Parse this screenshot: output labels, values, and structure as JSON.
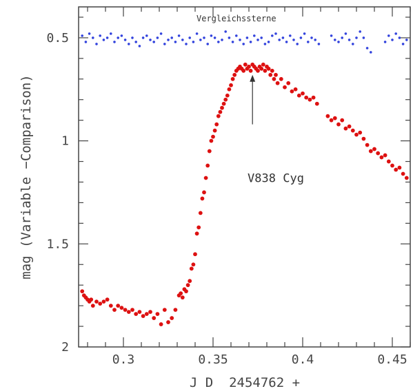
{
  "chart_data": {
    "type": "scatter",
    "title": "",
    "xlabel": "J D  2454762 +",
    "ylabel": "mag (Variable −Comparison)",
    "xlim": [
      0.275,
      0.46
    ],
    "ylim": [
      2.0,
      0.35
    ],
    "y_inverted": true,
    "grid": false,
    "x_ticks": [
      {
        "value": 0.3,
        "label": "0.3"
      },
      {
        "value": 0.35,
        "label": "0.35"
      },
      {
        "value": 0.4,
        "label": "0.4"
      },
      {
        "value": 0.45,
        "label": "0.45"
      }
    ],
    "y_ticks": [
      {
        "value": 0.5,
        "label": "0.5"
      },
      {
        "value": 1.0,
        "label": "1"
      },
      {
        "value": 1.5,
        "label": "1.5"
      },
      {
        "value": 2.0,
        "label": "2"
      }
    ],
    "annotations": [
      {
        "text": "Vergleichssterne",
        "x": 0.363,
        "y": 0.42
      },
      {
        "text": "V838 Cyg",
        "x": 0.385,
        "y": 1.2
      }
    ],
    "arrow": {
      "x": 0.372,
      "y_from": 0.92,
      "y_to": 0.68
    },
    "series": [
      {
        "color": "#3344dd",
        "x": [
          0.277,
          0.279,
          0.281,
          0.283,
          0.285,
          0.287,
          0.289,
          0.291,
          0.293,
          0.295,
          0.297,
          0.299,
          0.301,
          0.303,
          0.305,
          0.307,
          0.309,
          0.311,
          0.313,
          0.315,
          0.317,
          0.319,
          0.321,
          0.323,
          0.325,
          0.327,
          0.329,
          0.331,
          0.333,
          0.335,
          0.337,
          0.339,
          0.341,
          0.343,
          0.345,
          0.347,
          0.349,
          0.351,
          0.353,
          0.355,
          0.357,
          0.359,
          0.361,
          0.363,
          0.365,
          0.367,
          0.369,
          0.371,
          0.373,
          0.375,
          0.377,
          0.379,
          0.381,
          0.383,
          0.385,
          0.387,
          0.389,
          0.391,
          0.393,
          0.395,
          0.397,
          0.399,
          0.401,
          0.403,
          0.405,
          0.407,
          0.409,
          0.416,
          0.418,
          0.42,
          0.422,
          0.424,
          0.426,
          0.428,
          0.43,
          0.432,
          0.434,
          0.436,
          0.438,
          0.446,
          0.448,
          0.45,
          0.452,
          0.454,
          0.456,
          0.458
        ],
        "y": [
          0.49,
          0.52,
          0.48,
          0.5,
          0.53,
          0.49,
          0.51,
          0.5,
          0.48,
          0.52,
          0.5,
          0.49,
          0.51,
          0.53,
          0.5,
          0.52,
          0.54,
          0.5,
          0.49,
          0.51,
          0.52,
          0.5,
          0.48,
          0.53,
          0.51,
          0.5,
          0.52,
          0.49,
          0.51,
          0.53,
          0.5,
          0.52,
          0.48,
          0.51,
          0.5,
          0.53,
          0.49,
          0.5,
          0.52,
          0.51,
          0.47,
          0.5,
          0.52,
          0.49,
          0.51,
          0.53,
          0.5,
          0.52,
          0.49,
          0.51,
          0.5,
          0.53,
          0.52,
          0.49,
          0.48,
          0.51,
          0.5,
          0.52,
          0.49,
          0.51,
          0.53,
          0.5,
          0.48,
          0.52,
          0.5,
          0.51,
          0.53,
          0.49,
          0.51,
          0.52,
          0.5,
          0.48,
          0.51,
          0.53,
          0.5,
          0.47,
          0.5,
          0.55,
          0.57,
          0.52,
          0.49,
          0.51,
          0.48,
          0.5,
          0.53,
          0.51
        ]
      },
      {
        "color": "#dd1111",
        "x": [
          0.277,
          0.278,
          0.279,
          0.28,
          0.281,
          0.282,
          0.283,
          0.285,
          0.287,
          0.289,
          0.291,
          0.293,
          0.295,
          0.297,
          0.299,
          0.301,
          0.303,
          0.305,
          0.307,
          0.309,
          0.311,
          0.313,
          0.315,
          0.317,
          0.319,
          0.321,
          0.323,
          0.325,
          0.327,
          0.329,
          0.331,
          0.332,
          0.333,
          0.334,
          0.335,
          0.336,
          0.337,
          0.338,
          0.339,
          0.34,
          0.341,
          0.342,
          0.343,
          0.344,
          0.345,
          0.346,
          0.347,
          0.348,
          0.349,
          0.35,
          0.351,
          0.352,
          0.353,
          0.354,
          0.355,
          0.356,
          0.357,
          0.358,
          0.359,
          0.36,
          0.361,
          0.362,
          0.363,
          0.364,
          0.365,
          0.366,
          0.367,
          0.368,
          0.369,
          0.37,
          0.371,
          0.372,
          0.373,
          0.374,
          0.375,
          0.376,
          0.377,
          0.378,
          0.379,
          0.38,
          0.381,
          0.382,
          0.383,
          0.384,
          0.385,
          0.386,
          0.388,
          0.39,
          0.392,
          0.394,
          0.396,
          0.398,
          0.4,
          0.402,
          0.404,
          0.406,
          0.408,
          0.414,
          0.416,
          0.418,
          0.42,
          0.422,
          0.424,
          0.426,
          0.428,
          0.43,
          0.432,
          0.434,
          0.436,
          0.438,
          0.44,
          0.442,
          0.444,
          0.446,
          0.448,
          0.45,
          0.452,
          0.454,
          0.456,
          0.458
        ],
        "y": [
          1.73,
          1.75,
          1.76,
          1.77,
          1.78,
          1.77,
          1.8,
          1.78,
          1.79,
          1.78,
          1.77,
          1.8,
          1.82,
          1.8,
          1.81,
          1.82,
          1.83,
          1.82,
          1.84,
          1.83,
          1.85,
          1.84,
          1.83,
          1.86,
          1.84,
          1.89,
          1.82,
          1.88,
          1.86,
          1.82,
          1.75,
          1.74,
          1.76,
          1.72,
          1.73,
          1.7,
          1.68,
          1.62,
          1.6,
          1.55,
          1.45,
          1.42,
          1.35,
          1.28,
          1.25,
          1.18,
          1.12,
          1.05,
          1.0,
          0.98,
          0.95,
          0.92,
          0.88,
          0.86,
          0.84,
          0.82,
          0.8,
          0.78,
          0.75,
          0.73,
          0.7,
          0.68,
          0.66,
          0.65,
          0.64,
          0.65,
          0.66,
          0.63,
          0.65,
          0.64,
          0.66,
          0.63,
          0.64,
          0.65,
          0.66,
          0.64,
          0.65,
          0.63,
          0.66,
          0.64,
          0.65,
          0.68,
          0.66,
          0.7,
          0.68,
          0.72,
          0.7,
          0.74,
          0.72,
          0.76,
          0.75,
          0.78,
          0.77,
          0.79,
          0.8,
          0.79,
          0.82,
          0.88,
          0.9,
          0.89,
          0.92,
          0.9,
          0.94,
          0.93,
          0.95,
          0.97,
          0.96,
          0.99,
          1.02,
          1.05,
          1.04,
          1.06,
          1.08,
          1.07,
          1.1,
          1.12,
          1.14,
          1.13,
          1.16,
          1.18
        ]
      }
    ]
  }
}
